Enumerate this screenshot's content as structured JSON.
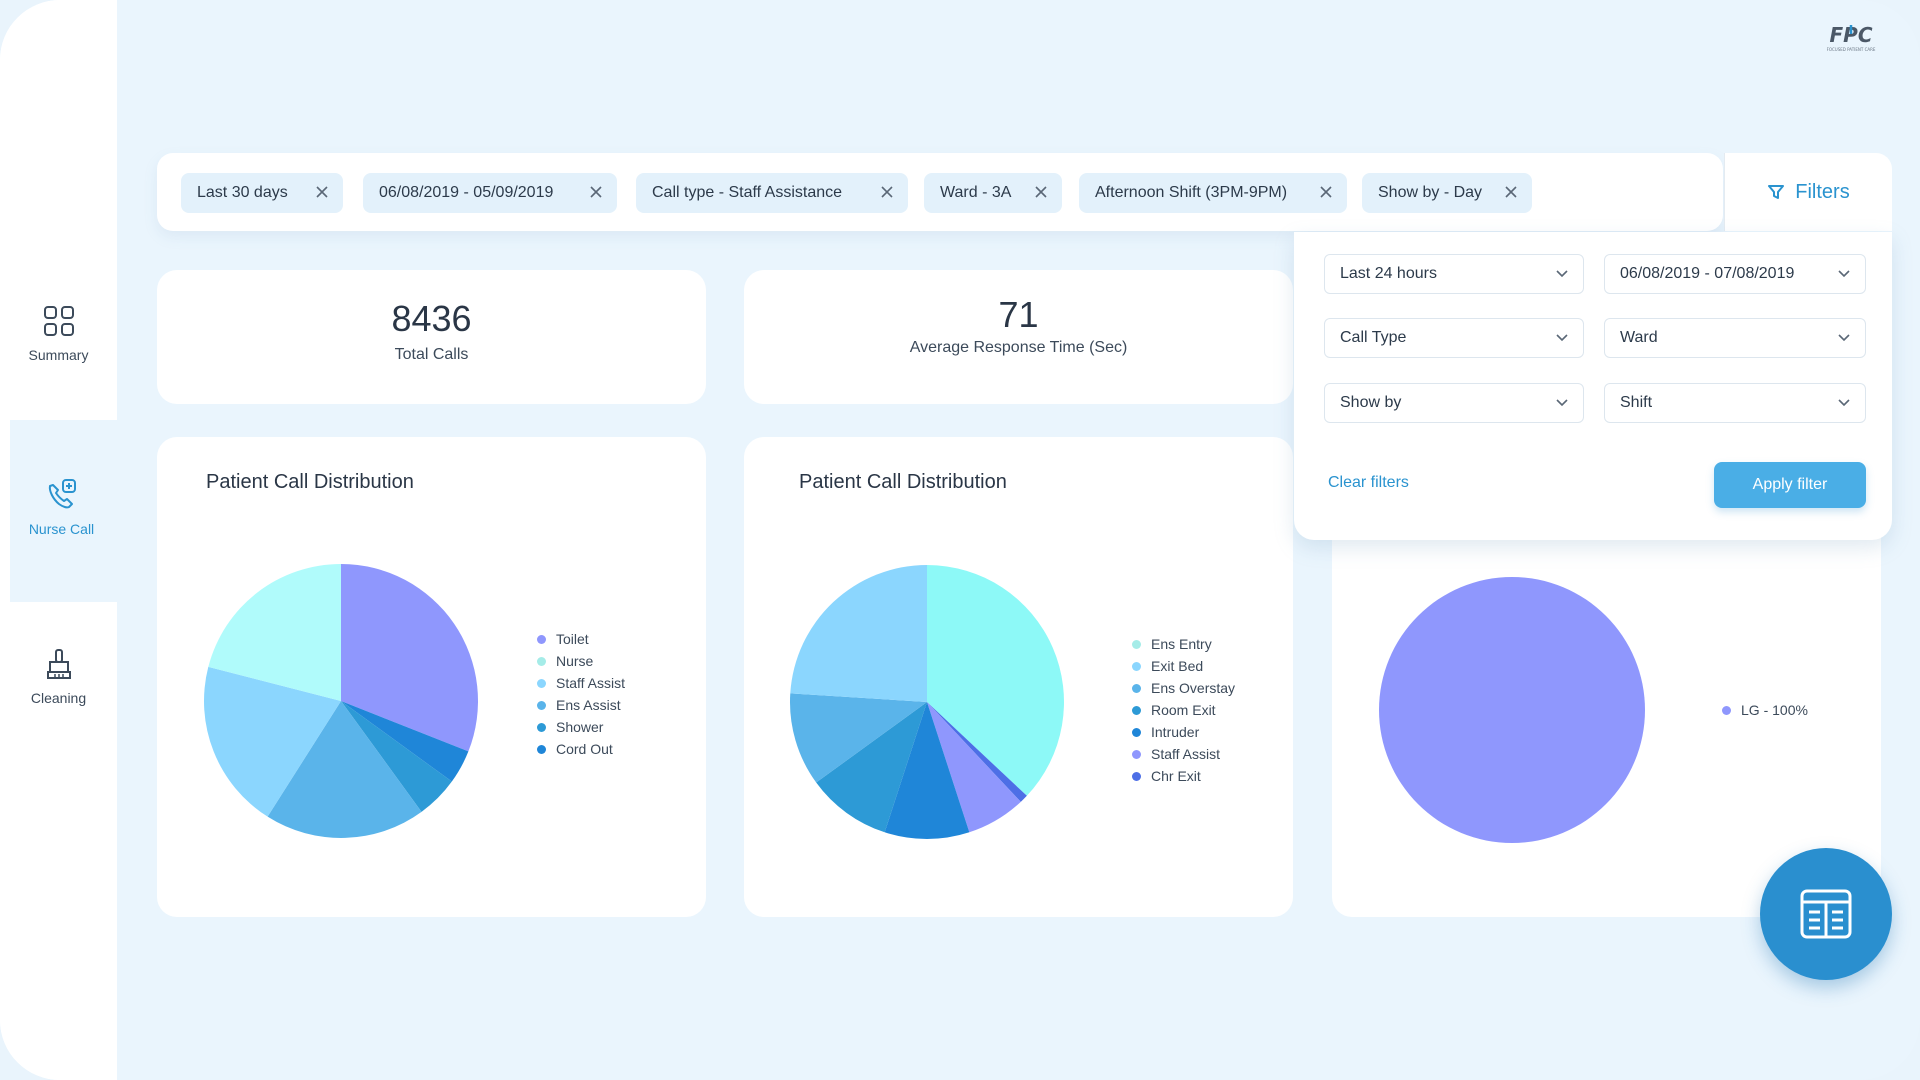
{
  "brand": {
    "logo_text": "FPC",
    "logo_tagline": "FOCUSED PATIENT CARE"
  },
  "sidebar": {
    "items": [
      {
        "label": "Summary",
        "icon": "grid-icon",
        "active": false
      },
      {
        "label": "Nurse Call",
        "icon": "phone-plus-icon",
        "active": true
      },
      {
        "label": "Cleaning",
        "icon": "broom-icon",
        "active": false
      }
    ]
  },
  "chips": [
    {
      "label": "Last 30 days"
    },
    {
      "label": "06/08/2019 - 05/09/2019"
    },
    {
      "label": "Call type - Staff Assistance"
    },
    {
      "label": "Ward - 3A"
    },
    {
      "label": "Afternoon Shift (3PM-9PM)"
    },
    {
      "label": "Show by - Day"
    }
  ],
  "filters_button": {
    "label": "Filters",
    "icon": "funnel-icon"
  },
  "filter_panel": {
    "selects": [
      {
        "value": "Last 24 hours"
      },
      {
        "value": "06/08/2019 - 07/08/2019"
      },
      {
        "value": "Call Type"
      },
      {
        "value": "Ward"
      },
      {
        "value": "Show by"
      },
      {
        "value": "Shift"
      }
    ],
    "clear_label": "Clear filters",
    "apply_label": "Apply filter"
  },
  "stats": {
    "total_calls": {
      "value": "8436",
      "label": "Total Calls"
    },
    "avg_response": {
      "value": "71",
      "label": "Average Response Time (Sec)"
    }
  },
  "colors": {
    "accent": "#2a93cf",
    "background": "#eaf5fd",
    "chip_bg": "#e3f1fb"
  },
  "chart_data": [
    {
      "type": "pie",
      "title": "Patient Call Distribution",
      "labels": [
        "Toilet",
        "Nurse",
        "Staff Assist",
        "Ens Assist",
        "Shower",
        "Cord Out"
      ],
      "values": [
        31,
        21,
        20,
        19,
        5,
        4
      ],
      "colors": [
        "#8f97fd",
        "#b0fbfb",
        "#8bd6fe",
        "#5ab4ea",
        "#2d9ad6",
        "#1f86d8"
      ],
      "legend_colors": [
        "#8f97fd",
        "#a5ece8",
        "#8bd6fe",
        "#5ab4ea",
        "#2d9ad6",
        "#1f86d8"
      ],
      "slice_order": [
        0,
        5,
        4,
        3,
        2,
        1
      ]
    },
    {
      "type": "pie",
      "title": "Patient Call Distribution",
      "labels": [
        "Ens Entry",
        "Exit Bed",
        "Ens Overstay",
        "Room Exit",
        "Intruder",
        "Staff Assist",
        "Chr Exit"
      ],
      "values": [
        37,
        24,
        11,
        10,
        10,
        7,
        1
      ],
      "colors": [
        "#8df9f7",
        "#8bd6fe",
        "#5ab4ea",
        "#2d9ad6",
        "#1f86d8",
        "#8f97fd",
        "#4d6fe6"
      ],
      "legend_colors": [
        "#a5ece8",
        "#8bd6fe",
        "#5ab4ea",
        "#2d9ad6",
        "#1f86d8",
        "#8f97fd",
        "#4d6fe6"
      ],
      "slice_order": [
        0,
        6,
        5,
        4,
        3,
        2,
        1
      ]
    },
    {
      "type": "pie",
      "title": "",
      "labels": [
        "LG - 100%"
      ],
      "values": [
        100
      ],
      "colors": [
        "#8f97fd"
      ],
      "legend_colors": [
        "#8f97fd"
      ],
      "slice_order": [
        0
      ]
    }
  ]
}
